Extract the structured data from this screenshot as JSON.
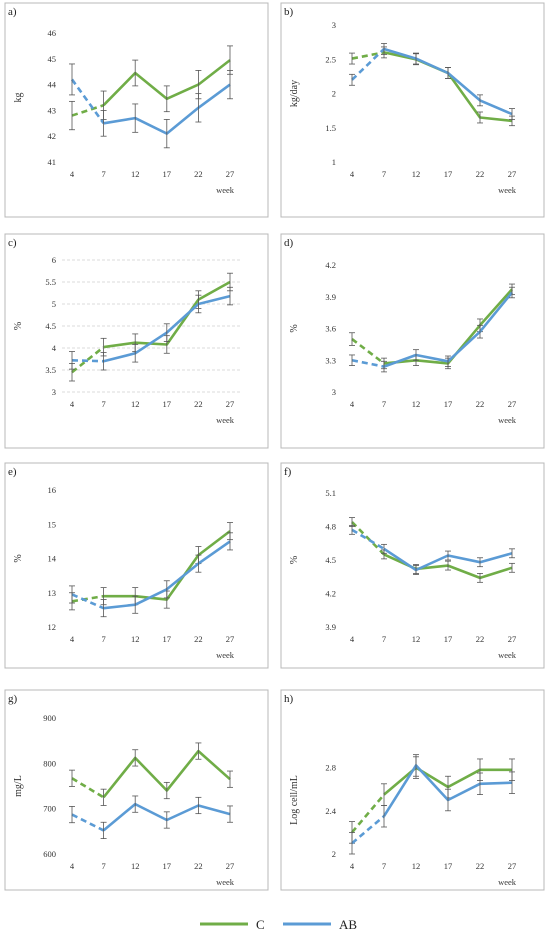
{
  "legend": {
    "items": [
      {
        "name": "C",
        "color": "#70ad47"
      },
      {
        "name": "AB",
        "color": "#5b9bd5"
      }
    ],
    "position": "bottom-center"
  },
  "chart_data": [
    {
      "type": "line",
      "panel_label": "a)",
      "ylabel": "kg",
      "xlabel": "week",
      "categories": [
        "4",
        "7",
        "12",
        "17",
        "22",
        "27"
      ],
      "ylim": [
        41,
        46
      ],
      "yticks": [
        "41",
        "42",
        "43",
        "44",
        "45",
        "46"
      ],
      "grid": false,
      "series": [
        {
          "name": "C",
          "color": "#70ad47",
          "values": [
            42.8,
            43.2,
            44.45,
            43.45,
            44.0,
            44.95
          ],
          "errors": [
            0.55,
            0.55,
            0.5,
            0.5,
            0.55,
            0.55
          ]
        },
        {
          "name": "AB",
          "color": "#5b9bd5",
          "values": [
            44.2,
            42.5,
            42.7,
            42.1,
            43.1,
            44.0
          ],
          "errors": [
            0.6,
            0.5,
            0.55,
            0.55,
            0.55,
            0.55
          ]
        }
      ]
    },
    {
      "type": "line",
      "panel_label": "b)",
      "ylabel": "kg/day",
      "xlabel": "week",
      "categories": [
        "4",
        "7",
        "12",
        "17",
        "22",
        "27"
      ],
      "ylim": [
        1,
        3
      ],
      "yticks": [
        "1",
        "1.5",
        "2",
        "2.5",
        "3"
      ],
      "grid": false,
      "series": [
        {
          "name": "C",
          "color": "#70ad47",
          "values": [
            2.51,
            2.6,
            2.5,
            2.3,
            1.65,
            1.6
          ],
          "errors": [
            0.08,
            0.08,
            0.08,
            0.08,
            0.08,
            0.07
          ]
        },
        {
          "name": "AB",
          "color": "#5b9bd5",
          "values": [
            2.2,
            2.65,
            2.51,
            2.3,
            1.9,
            1.7
          ],
          "errors": [
            0.08,
            0.08,
            0.08,
            0.08,
            0.08,
            0.08
          ]
        }
      ]
    },
    {
      "type": "line",
      "panel_label": "c)",
      "ylabel": "%",
      "xlabel": "week",
      "categories": [
        "4",
        "7",
        "12",
        "17",
        "22",
        "27"
      ],
      "ylim": [
        3,
        6
      ],
      "yticks": [
        "3",
        "3.5",
        "4",
        "4.5",
        "5",
        "5.5",
        "6"
      ],
      "grid": true,
      "series": [
        {
          "name": "C",
          "color": "#70ad47",
          "values": [
            3.45,
            4.02,
            4.12,
            4.08,
            5.1,
            5.5
          ],
          "errors": [
            0.2,
            0.2,
            0.2,
            0.2,
            0.2,
            0.2
          ]
        },
        {
          "name": "AB",
          "color": "#5b9bd5",
          "values": [
            3.72,
            3.7,
            3.88,
            4.35,
            5.0,
            5.18
          ],
          "errors": [
            0.2,
            0.2,
            0.2,
            0.2,
            0.2,
            0.2
          ]
        }
      ]
    },
    {
      "type": "line",
      "panel_label": "d)",
      "ylabel": "%",
      "xlabel": "week",
      "categories": [
        "4",
        "7",
        "12",
        "17",
        "22",
        "27"
      ],
      "ylim": [
        3,
        4.2
      ],
      "yticks": [
        "3",
        "3.3",
        "3.6",
        "3.9",
        "4.2"
      ],
      "grid": false,
      "series": [
        {
          "name": "C",
          "color": "#70ad47",
          "values": [
            3.5,
            3.27,
            3.3,
            3.27,
            3.63,
            3.97
          ],
          "errors": [
            0.06,
            0.05,
            0.05,
            0.05,
            0.06,
            0.05
          ]
        },
        {
          "name": "AB",
          "color": "#5b9bd5",
          "values": [
            3.3,
            3.24,
            3.35,
            3.29,
            3.57,
            3.94
          ],
          "errors": [
            0.05,
            0.05,
            0.05,
            0.05,
            0.06,
            0.05
          ]
        }
      ]
    },
    {
      "type": "line",
      "panel_label": "e)",
      "ylabel": "%",
      "xlabel": "week",
      "categories": [
        "4",
        "7",
        "12",
        "17",
        "22",
        "27"
      ],
      "ylim": [
        12,
        16
      ],
      "yticks": [
        "12",
        "13",
        "14",
        "15",
        "16"
      ],
      "grid": false,
      "series": [
        {
          "name": "C",
          "color": "#70ad47",
          "values": [
            12.75,
            12.9,
            12.9,
            12.8,
            14.1,
            14.8
          ],
          "errors": [
            0.25,
            0.25,
            0.25,
            0.25,
            0.25,
            0.25
          ]
        },
        {
          "name": "AB",
          "color": "#5b9bd5",
          "values": [
            12.95,
            12.55,
            12.65,
            13.1,
            13.85,
            14.5
          ],
          "errors": [
            0.25,
            0.25,
            0.25,
            0.25,
            0.25,
            0.25
          ]
        }
      ]
    },
    {
      "type": "line",
      "panel_label": "f)",
      "ylabel": "%",
      "xlabel": "week",
      "categories": [
        "4",
        "7",
        "12",
        "17",
        "22",
        "27"
      ],
      "ylim": [
        3.9,
        5.1
      ],
      "yticks": [
        "3.9",
        "4.2",
        "4.5",
        "4.8",
        "5.1"
      ],
      "grid": false,
      "series": [
        {
          "name": "C",
          "color": "#70ad47",
          "values": [
            4.84,
            4.55,
            4.42,
            4.45,
            4.34,
            4.43
          ],
          "errors": [
            0.04,
            0.04,
            0.04,
            0.04,
            0.04,
            0.04
          ]
        },
        {
          "name": "AB",
          "color": "#5b9bd5",
          "values": [
            4.77,
            4.6,
            4.41,
            4.54,
            4.48,
            4.56
          ],
          "errors": [
            0.04,
            0.04,
            0.04,
            0.04,
            0.04,
            0.04
          ]
        }
      ]
    },
    {
      "type": "line",
      "panel_label": "g)",
      "ylabel": "mg/L",
      "xlabel": "week",
      "categories": [
        "4",
        "7",
        "12",
        "17",
        "22",
        "27"
      ],
      "ylim": [
        600,
        900
      ],
      "yticks": [
        "600",
        "700",
        "800",
        "900"
      ],
      "grid": false,
      "series": [
        {
          "name": "C",
          "color": "#70ad47",
          "values": [
            767,
            725,
            812,
            740,
            827,
            765
          ],
          "errors": [
            18,
            18,
            18,
            18,
            18,
            18
          ]
        },
        {
          "name": "AB",
          "color": "#5b9bd5",
          "values": [
            687,
            652,
            710,
            675,
            707,
            688
          ],
          "errors": [
            18,
            18,
            18,
            18,
            18,
            18
          ]
        }
      ]
    },
    {
      "type": "line",
      "panel_label": "h)",
      "ylabel": "Log cell/mL",
      "xlabel": "week",
      "categories": [
        "4",
        "7",
        "12",
        "17",
        "22",
        "27"
      ],
      "ylim": [
        2,
        3
      ],
      "yticks": [
        "2",
        "2.4",
        "2.8"
      ],
      "grid": false,
      "series": [
        {
          "name": "C",
          "color": "#70ad47",
          "values": [
            2.2,
            2.55,
            2.8,
            2.62,
            2.78,
            2.78
          ],
          "errors": [
            0.1,
            0.1,
            0.1,
            0.1,
            0.1,
            0.1
          ]
        },
        {
          "name": "AB",
          "color": "#5b9bd5",
          "values": [
            2.1,
            2.35,
            2.82,
            2.5,
            2.65,
            2.66
          ],
          "errors": [
            0.1,
            0.1,
            0.1,
            0.1,
            0.1,
            0.1
          ]
        }
      ]
    }
  ]
}
